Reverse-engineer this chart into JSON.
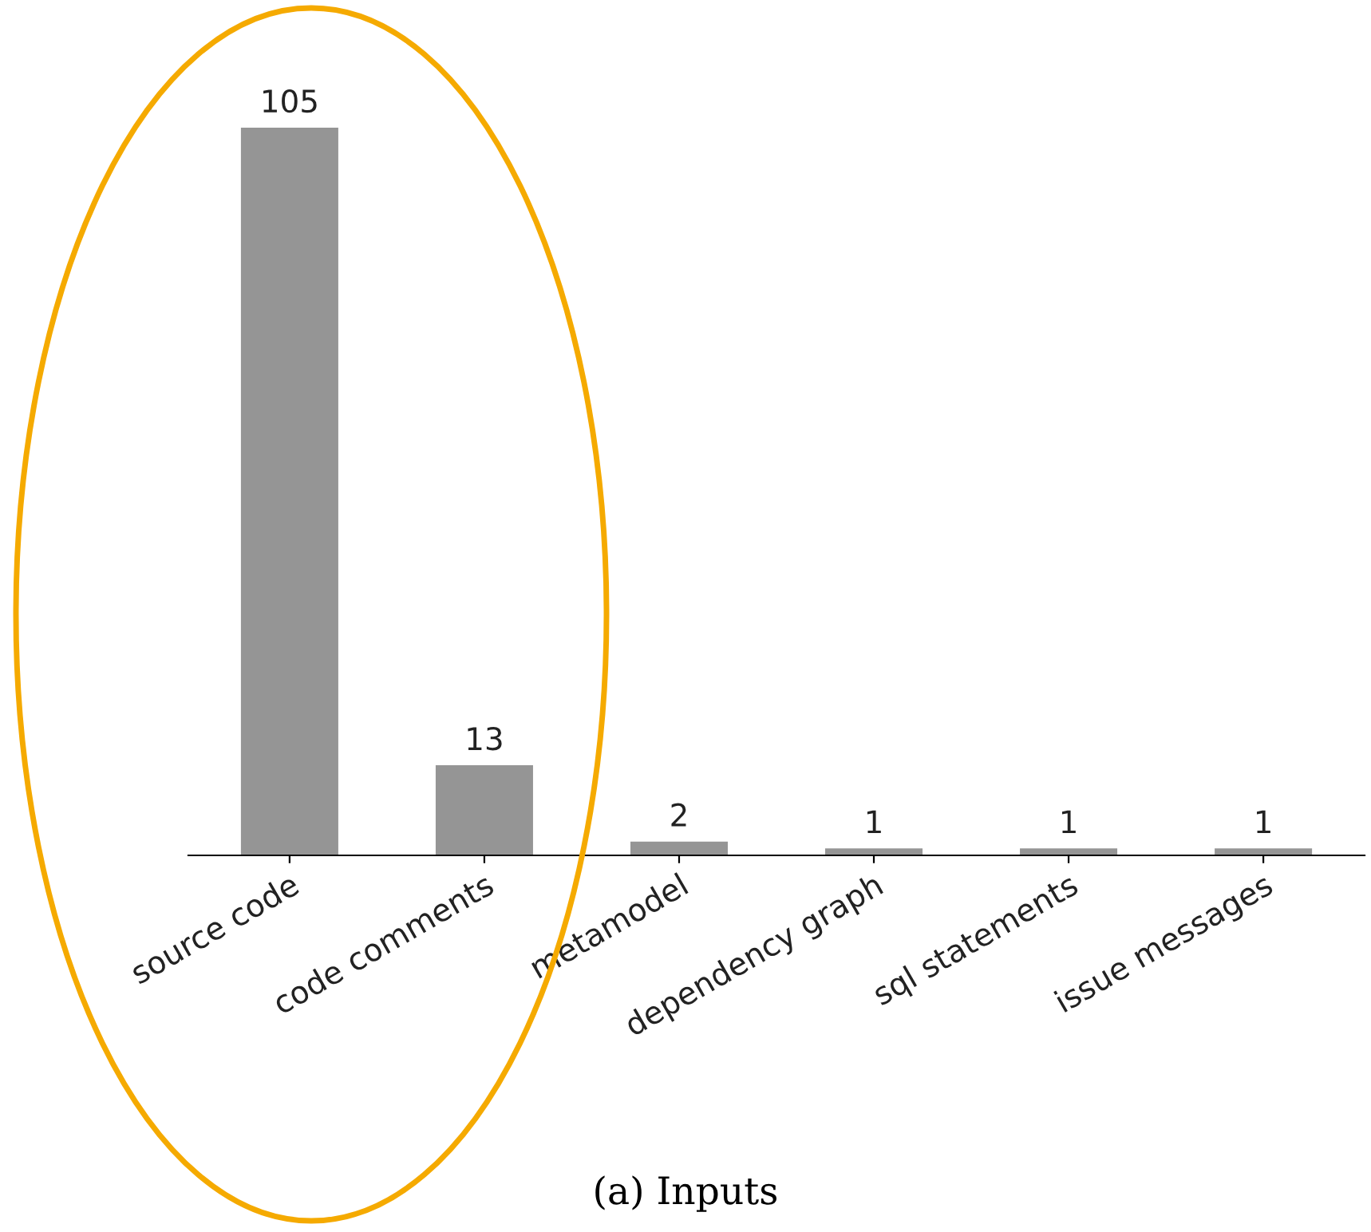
{
  "chart_data": {
    "type": "bar",
    "title": "(a) Inputs",
    "categories": [
      "source code",
      "code comments",
      "metamodel",
      "dependency graph",
      "sql statements",
      "issue messages"
    ],
    "values": [
      105,
      13,
      2,
      1,
      1,
      1
    ],
    "color": "#959595",
    "data_labels": true
  }
}
